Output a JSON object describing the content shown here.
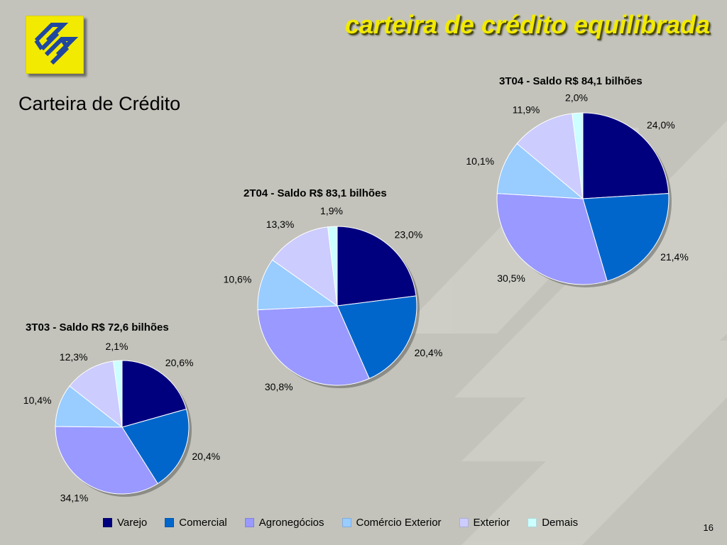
{
  "slide": {
    "title": "carteira de crédito equilibrada",
    "subtitle": "Carteira de Crédito",
    "page_number": "16"
  },
  "colors": {
    "background": "#c3c3bb",
    "title": "#f2ea00",
    "logo": "#f2ea00",
    "logo_mark": "#1f47a0",
    "series": [
      "#00007f",
      "#0066cc",
      "#9999ff",
      "#99ccff",
      "#ccccff",
      "#ccffff"
    ]
  },
  "legend": {
    "items": [
      {
        "label": "Varejo",
        "color": "#00007f"
      },
      {
        "label": "Comercial",
        "color": "#0066cc"
      },
      {
        "label": "Agronegócios",
        "color": "#9999ff"
      },
      {
        "label": "Comércio Exterior",
        "color": "#99ccff"
      },
      {
        "label": "Exterior",
        "color": "#ccccff"
      },
      {
        "label": "Demais",
        "color": "#ccffff"
      }
    ]
  },
  "chart_data": [
    {
      "type": "pie",
      "title": "3T03 - Saldo R$ 72,6 bilhões",
      "categories": [
        "Varejo",
        "Comercial",
        "Agronegócios",
        "Comércio Exterior",
        "Exterior",
        "Demais"
      ],
      "values": [
        20.6,
        20.4,
        34.1,
        10.4,
        12.3,
        2.1
      ],
      "labels": [
        "20,6%",
        "20,4%",
        "34,1%",
        "10,4%",
        "12,3%",
        "2,1%"
      ]
    },
    {
      "type": "pie",
      "title": "2T04 - Saldo R$ 83,1 bilhões",
      "categories": [
        "Varejo",
        "Comercial",
        "Agronegócios",
        "Comércio Exterior",
        "Exterior",
        "Demais"
      ],
      "values": [
        23.0,
        20.4,
        30.8,
        10.6,
        13.3,
        1.9
      ],
      "labels": [
        "23,0%",
        "20,4%",
        "30,8%",
        "10,6%",
        "13,3%",
        "1,9%"
      ]
    },
    {
      "type": "pie",
      "title": "3T04 - Saldo R$ 84,1 bilhões",
      "categories": [
        "Varejo",
        "Comercial",
        "Agronegócios",
        "Comércio Exterior",
        "Exterior",
        "Demais"
      ],
      "values": [
        24.0,
        21.4,
        30.5,
        10.1,
        11.9,
        2.0
      ],
      "labels": [
        "24,0%",
        "21,4%",
        "30,5%",
        "10,1%",
        "11,9%",
        "2,0%"
      ]
    }
  ]
}
